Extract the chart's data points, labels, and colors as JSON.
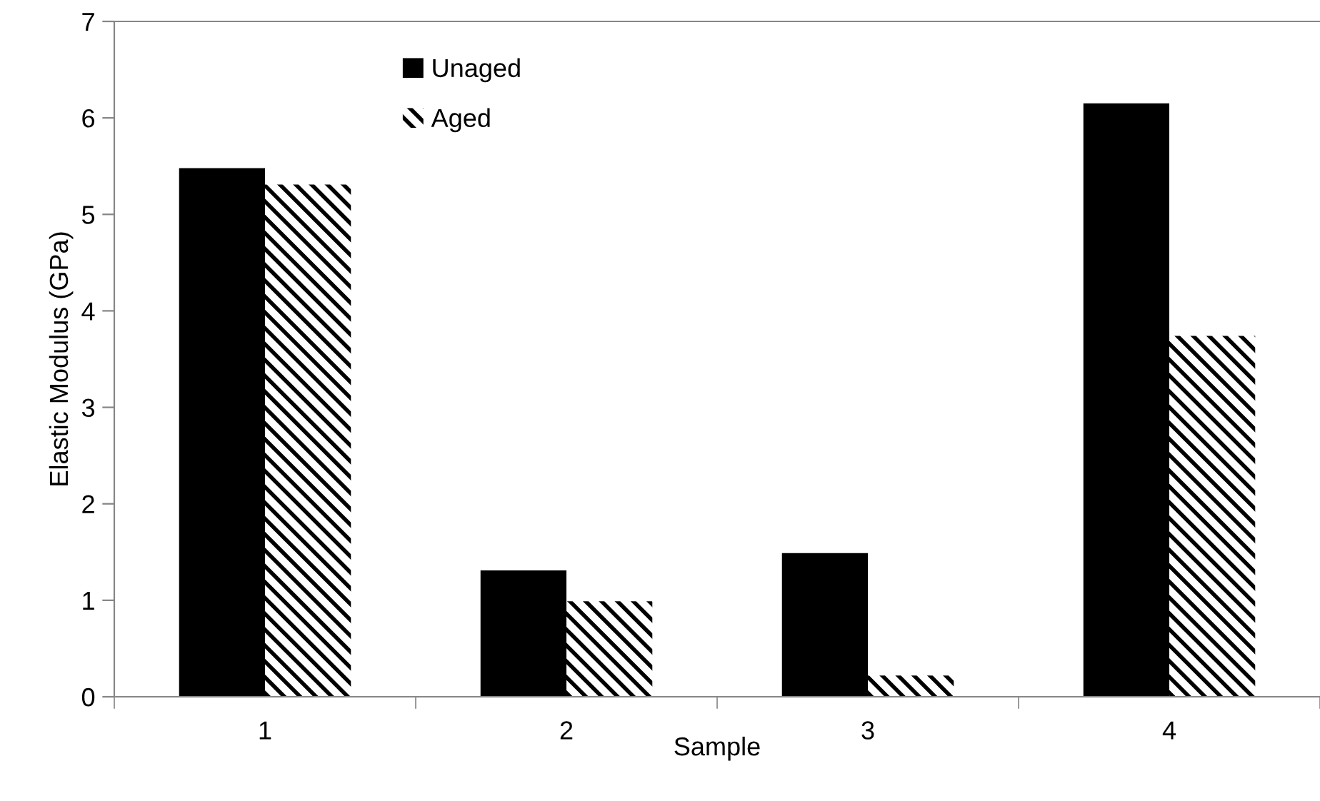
{
  "chart_data": {
    "type": "bar",
    "xlabel": "Sample",
    "ylabel": "Elastic Modulus (GPa)",
    "categories": [
      "1",
      "2",
      "3",
      "4"
    ],
    "series": [
      {
        "name": "Unaged",
        "color": "#000000",
        "values": [
          5.48,
          1.31,
          1.49,
          6.15
        ]
      },
      {
        "name": "Aged",
        "color": "#000000",
        "values": [
          5.31,
          0.99,
          0.22,
          3.74
        ]
      }
    ],
    "ylim": [
      0,
      7
    ],
    "yticks": [
      0,
      1,
      2,
      3,
      4,
      5,
      6,
      7
    ],
    "grid": false,
    "legend": "top left"
  }
}
